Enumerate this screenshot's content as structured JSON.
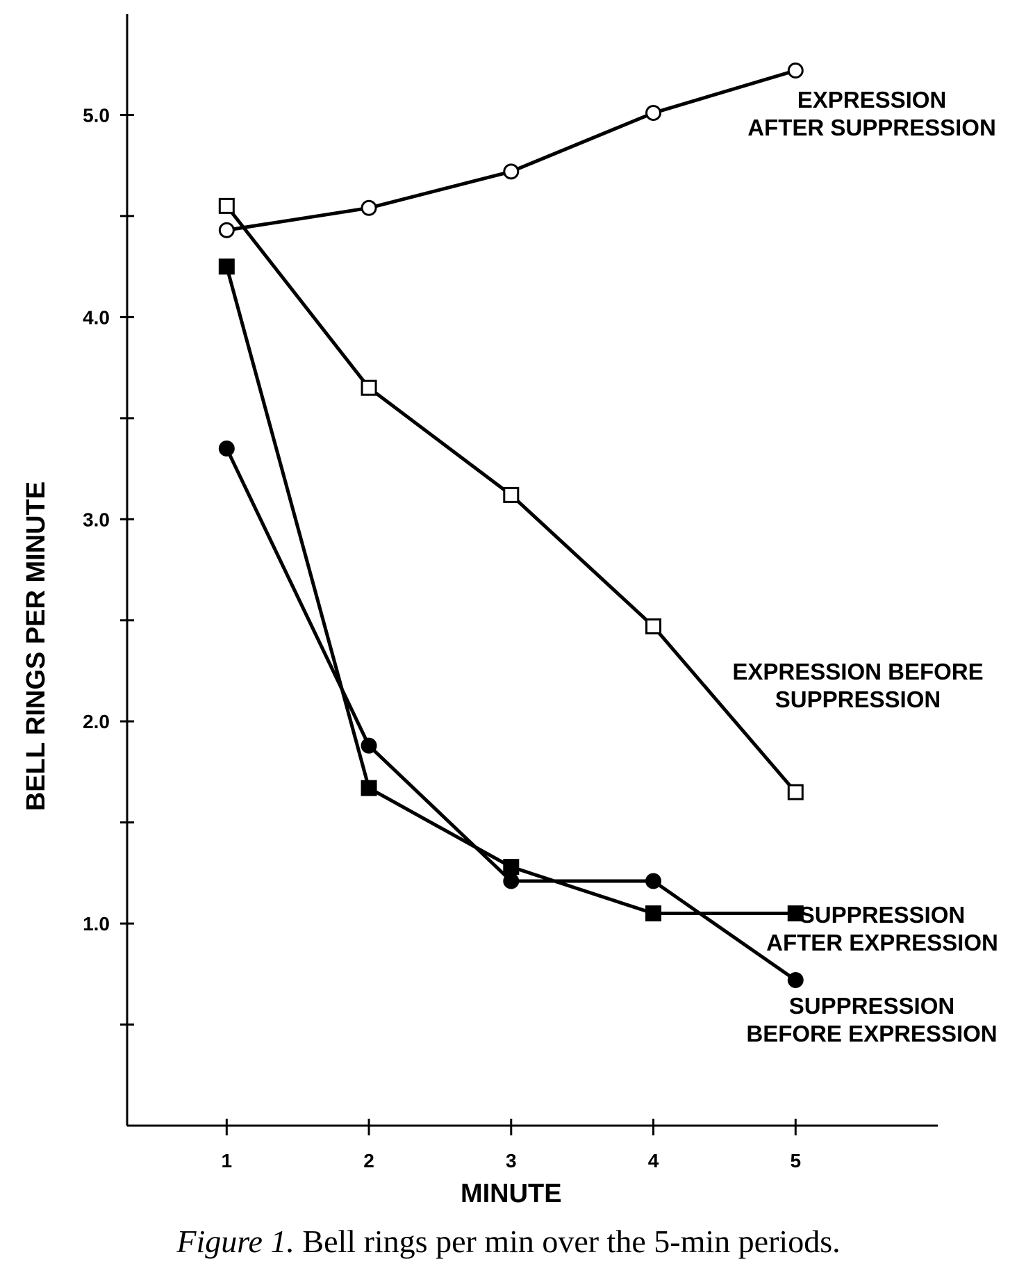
{
  "chart_data": {
    "type": "line",
    "x": [
      1,
      2,
      3,
      4,
      5
    ],
    "xlabel": "MINUTE",
    "ylabel": "BELL RINGS PER MINUTE",
    "xticks": [
      "1",
      "2",
      "3",
      "4",
      "5"
    ],
    "yticks": [
      "1.0",
      "2.0",
      "3.0",
      "4.0",
      "5.0"
    ],
    "xlim": [
      0.3,
      6.0
    ],
    "ylim": [
      0,
      5.5
    ],
    "grid": false,
    "series": [
      {
        "name": "EXPRESSION AFTER SUPPRESSION",
        "label_lines": [
          "EXPRESSION",
          "AFTER SUPPRESSION"
        ],
        "marker": "open-circle",
        "values": [
          4.43,
          4.54,
          4.72,
          5.01,
          5.22
        ]
      },
      {
        "name": "EXPRESSION BEFORE SUPPRESSION",
        "label_lines": [
          "EXPRESSION BEFORE",
          "SUPPRESSION"
        ],
        "marker": "open-square",
        "values": [
          4.55,
          3.65,
          3.12,
          2.47,
          1.65
        ]
      },
      {
        "name": "SUPPRESSION AFTER EXPRESSION",
        "label_lines": [
          "SUPPRESSION",
          "AFTER EXPRESSION"
        ],
        "marker": "filled-square",
        "values": [
          4.25,
          1.67,
          1.28,
          1.05,
          1.05
        ]
      },
      {
        "name": "SUPPRESSION BEFORE EXPRESSION",
        "label_lines": [
          "SUPPRESSION",
          "BEFORE EXPRESSION"
        ],
        "marker": "filled-circle",
        "values": [
          3.35,
          1.88,
          1.21,
          1.21,
          0.72
        ]
      }
    ]
  },
  "caption": {
    "figure": "Figure 1.",
    "text": " Bell rings per min over the 5-min periods."
  }
}
